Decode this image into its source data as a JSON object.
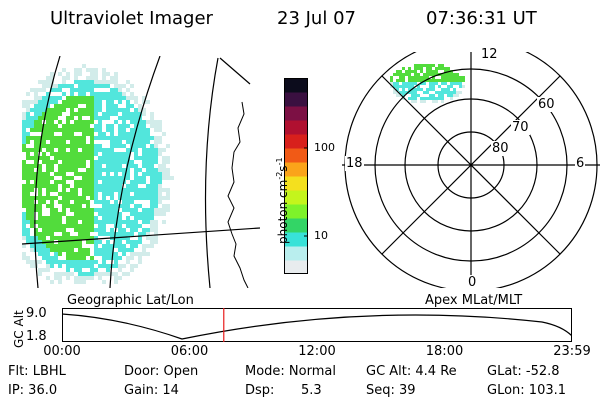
{
  "header": {
    "title": "Ultraviolet Imager",
    "date": "23 Jul 07",
    "time": "07:36:31 UT"
  },
  "colors": {
    "colorbar": [
      "#e8ecee",
      "#b9eeee",
      "#38e2d8",
      "#33d566",
      "#7ef22a",
      "#c4f51c",
      "#f4e01e",
      "#fba41a",
      "#f15a16",
      "#d8201c",
      "#b01030",
      "#7c1044",
      "#3a1040",
      "#0c0c1c"
    ],
    "aurora_green": "#52dc3c",
    "aurora_cyan": "#52e6dc",
    "aurora_pale": "#d2ecea",
    "marker": "#e81c1c"
  },
  "colorbar": {
    "unit": "photon cm",
    "unit_exp1": "-2",
    "unit_mid": "s",
    "unit_exp2": "-1",
    "tick_100": "100",
    "tick_10": "10"
  },
  "geo_panel": {
    "label": "Geographic Lat/Lon"
  },
  "polar_panel": {
    "label": "Apex MLat/MLT",
    "mlt_top": "12",
    "mlt_left": "18",
    "mlt_right": "6",
    "mlt_bottom": "0",
    "lat_60": "60",
    "lat_70": "70",
    "lat_80": "80"
  },
  "alt_plot": {
    "axis_label": "GC Alt",
    "y_max": "9.0",
    "y_min": "1.8",
    "x_ticks": [
      "00:00",
      "06:00",
      "12:00",
      "18:00",
      "23:59"
    ],
    "current_time_fraction": 0.3172
  },
  "status": {
    "flt": "Flt: LBHL",
    "door": "Door: Open",
    "mode": "Mode: Normal",
    "gc_alt": "GC Alt: 4.4 Re",
    "glat": "GLat: -52.8",
    "ip": "IP: 36.0",
    "gain": "Gain: 14",
    "dsp_label": "Dsp:",
    "dsp_value": "5.3",
    "seq": "Seq: 39",
    "glon": "GLon: 103.1"
  }
}
